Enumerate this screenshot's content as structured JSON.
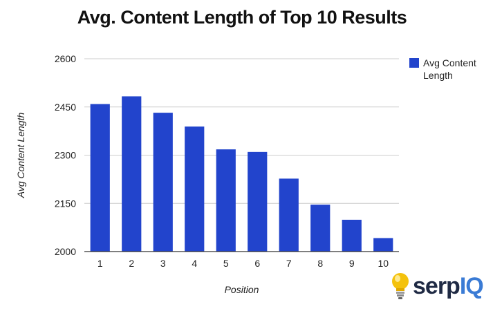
{
  "colors": {
    "bar": "#2244cc",
    "grid": "#cccccc",
    "axis": "#333333",
    "bulb": "#f4c20d"
  },
  "brand": {
    "logo_icon": "lightbulb-icon",
    "text_main": "serp",
    "text_accent": "IQ"
  },
  "chart_data": {
    "type": "bar",
    "title": "Avg. Content Length of Top 10 Results",
    "xlabel": "Position",
    "ylabel": "Avg Content Length",
    "categories": [
      "1",
      "2",
      "3",
      "4",
      "5",
      "6",
      "7",
      "8",
      "9",
      "10"
    ],
    "series": [
      {
        "name": "Avg Content Length",
        "values": [
          2459,
          2483,
          2432,
          2389,
          2318,
          2310,
          2227,
          2146,
          2099,
          2042
        ]
      }
    ],
    "ylim": [
      2000,
      2600
    ],
    "yticks": [
      "2000",
      "2150",
      "2300",
      "2450",
      "2600"
    ],
    "grid": true,
    "legend_position": "right"
  }
}
